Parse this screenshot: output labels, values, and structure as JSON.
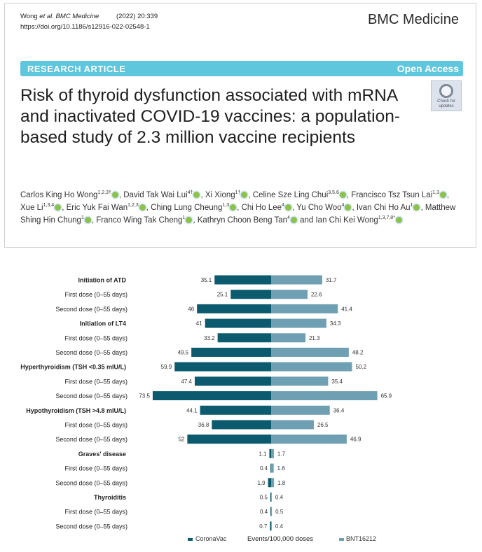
{
  "header": {
    "citation_authors": "Wong",
    "citation_etal": "et al.",
    "citation_journal": "BMC Medicine",
    "citation_year": "(2022) 20:339",
    "doi": "https://doi.org/10.1186/s12916-022-02548-1",
    "journal": "BMC Medicine",
    "banner_left": "RESEARCH ARTICLE",
    "banner_right": "Open Access",
    "check_updates": [
      "Check for",
      "updates"
    ],
    "title": "Risk of thyroid dysfunction associated with mRNA and inactivated COVID-19 vaccines: a population-based study of 2.3 million vaccine recipients"
  },
  "authors": [
    {
      "name": "Carlos King Ho Wong",
      "sup": "1,2,3†"
    },
    {
      "name": "David Tak Wai Lui",
      "sup": "4†"
    },
    {
      "name": "Xi Xiong",
      "sup": "1†"
    },
    {
      "name": "Celine Sze Ling Chui",
      "sup": "3,5,6"
    },
    {
      "name": "Francisco Tsz Tsun Lai",
      "sup": "1,3"
    },
    {
      "name": "Xue Li",
      "sup": "1,3,4"
    },
    {
      "name": "Eric Yuk Fai Wan",
      "sup": "1,2,3"
    },
    {
      "name": "Ching Lung Cheung",
      "sup": "1,3"
    },
    {
      "name": "Chi Ho Lee",
      "sup": "4"
    },
    {
      "name": "Yu Cho Woo",
      "sup": "4"
    },
    {
      "name": "Ivan Chi Ho Au",
      "sup": "1"
    },
    {
      "name": "Matthew Shing Hin Chung",
      "sup": "1"
    },
    {
      "name": "Franco Wing Tak Cheng",
      "sup": "1"
    },
    {
      "name": "Kathryn Choon Beng Tan",
      "sup": "4"
    },
    {
      "name": "Ian Chi Kei Wong",
      "sup": "1,3,7,8*"
    }
  ],
  "authors_conjunction": "and",
  "chart_data": {
    "type": "bar",
    "orientation": "horizontal-butterfly",
    "categories": [
      "Initiation of ATD",
      "First dose (0–55 days)",
      "Second dose (0–55 days)",
      "Initiation of LT4",
      "First dose (0–55 days)",
      "Second dose (0–55 days)",
      "Hyperthyroidism (TSH <0.35 mIU/L)",
      "First dose (0–55 days)",
      "Second dose (0–55 days)",
      "Hypothyroidism (TSH >4.8 mIU/L)",
      "First dose (0–55 days)",
      "Second dose (0–55 days)",
      "Graves' disease",
      "First dose (0–55 days)",
      "Second dose (0–55 days)",
      "Thyroiditis",
      "First dose (0–55 days)",
      "Second dose (0–55 days)"
    ],
    "group_header": [
      true,
      false,
      false,
      true,
      false,
      false,
      true,
      false,
      false,
      true,
      false,
      false,
      true,
      false,
      false,
      true,
      false,
      false
    ],
    "series": [
      {
        "name": "CoronaVac",
        "color": "#0b5a6e",
        "side": "left",
        "values": [
          35.1,
          25.1,
          46,
          41,
          33.2,
          49.5,
          59.9,
          47.4,
          73.5,
          44.1,
          36.8,
          52,
          1.1,
          0.4,
          1.9,
          0.5,
          0.4,
          0.7
        ]
      },
      {
        "name": "BNT16212",
        "color": "#6f9fb2",
        "side": "right",
        "values": [
          31.7,
          22.6,
          41.4,
          34.3,
          21.3,
          48.2,
          50.2,
          35.4,
          65.9,
          36.4,
          26.5,
          46.9,
          1.7,
          1.6,
          1.8,
          0.4,
          0.5,
          0.4
        ]
      }
    ],
    "xlabel": "Events/100,000 doses",
    "legend_position": "bottom",
    "grid": false
  }
}
